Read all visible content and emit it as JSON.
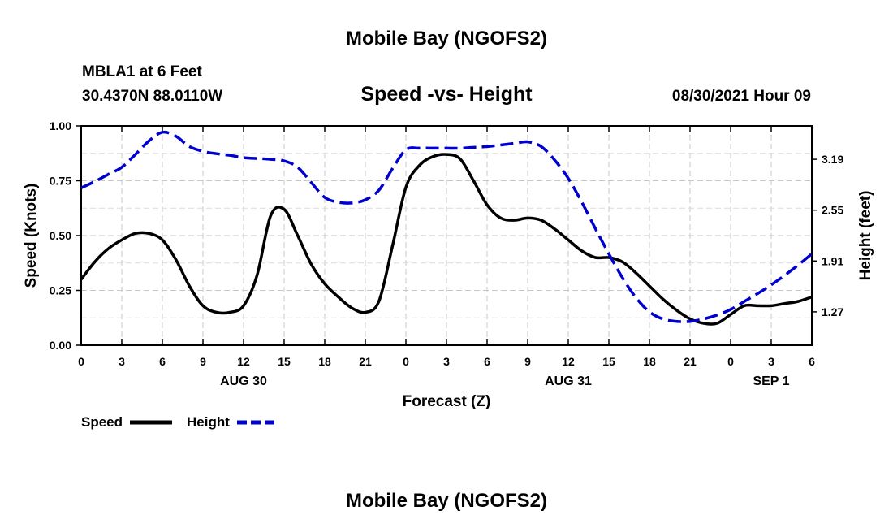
{
  "page": {
    "top_title": "Mobile Bay (NGOFS2)",
    "bottom_title": "Mobile Bay (NGOFS2)"
  },
  "header": {
    "station_line": "MBLA1 at 6 Feet",
    "coords_line": "30.4370N  88.0110W",
    "date_line": "08/30/2021 Hour 09"
  },
  "chart_data": {
    "type": "line",
    "title": "Speed -vs- Height",
    "xlabel": "Forecast (Z)",
    "ylabel": "Speed (Knots)",
    "y2label": "Height (feet)",
    "xlim": [
      0,
      54
    ],
    "ylim": [
      0,
      1.0
    ],
    "y2lim": [
      0.85,
      3.61
    ],
    "x_ticks": [
      0,
      3,
      6,
      9,
      12,
      15,
      18,
      21,
      24,
      27,
      30,
      33,
      36,
      39,
      42,
      45,
      48,
      51,
      54
    ],
    "x_tick_labels": [
      "0",
      "3",
      "6",
      "9",
      "12",
      "15",
      "18",
      "21",
      "0",
      "3",
      "6",
      "9",
      "12",
      "15",
      "18",
      "21",
      "0",
      "3",
      "6"
    ],
    "date_labels": [
      {
        "x": 12,
        "label": "AUG 30"
      },
      {
        "x": 36,
        "label": "AUG 31"
      },
      {
        "x": 51,
        "label": "SEP 1"
      }
    ],
    "y_ticks": [
      0.0,
      0.25,
      0.5,
      0.75,
      1.0
    ],
    "y_tick_labels": [
      "0.00",
      "0.25",
      "0.50",
      "0.75",
      "1.00"
    ],
    "y2_ticks": [
      1.27,
      1.91,
      2.55,
      3.19
    ],
    "y2_tick_labels": [
      "1.27",
      "1.91",
      "2.55",
      "3.19"
    ],
    "grid": true,
    "legend": "bottom-left",
    "series": [
      {
        "name": "Speed",
        "axis": "left",
        "color": "#000000",
        "style": "solid",
        "x": [
          0,
          1,
          2,
          3,
          4,
          5,
          6,
          7,
          8,
          9,
          10,
          11,
          12,
          13,
          14,
          15,
          16,
          17,
          18,
          19,
          20,
          21,
          22,
          23,
          24,
          25,
          26,
          27,
          28,
          29,
          30,
          31,
          32,
          33,
          34,
          35,
          36,
          37,
          38,
          39,
          40,
          41,
          42,
          43,
          44,
          45,
          46,
          47,
          48,
          49,
          50,
          51,
          52,
          53,
          54
        ],
        "values": [
          0.3,
          0.38,
          0.44,
          0.48,
          0.51,
          0.51,
          0.48,
          0.39,
          0.27,
          0.18,
          0.15,
          0.15,
          0.18,
          0.32,
          0.59,
          0.62,
          0.5,
          0.37,
          0.28,
          0.22,
          0.17,
          0.15,
          0.2,
          0.45,
          0.72,
          0.82,
          0.86,
          0.87,
          0.85,
          0.75,
          0.64,
          0.58,
          0.57,
          0.58,
          0.57,
          0.53,
          0.48,
          0.43,
          0.4,
          0.4,
          0.38,
          0.33,
          0.27,
          0.21,
          0.16,
          0.12,
          0.1,
          0.1,
          0.14,
          0.18,
          0.18,
          0.18,
          0.19,
          0.2,
          0.22
        ]
      },
      {
        "name": "Height",
        "axis": "right",
        "color": "#0000cc",
        "style": "dashed",
        "x": [
          0,
          1,
          2,
          3,
          4,
          5,
          6,
          7,
          8,
          9,
          10,
          11,
          12,
          13,
          14,
          15,
          16,
          17,
          18,
          19,
          20,
          21,
          22,
          23,
          24,
          25,
          26,
          27,
          28,
          29,
          30,
          31,
          32,
          33,
          34,
          35,
          36,
          37,
          38,
          39,
          40,
          41,
          42,
          43,
          44,
          45,
          46,
          47,
          48,
          49,
          50,
          51,
          52,
          53,
          54
        ],
        "values": [
          2.83,
          2.91,
          3.0,
          3.09,
          3.25,
          3.42,
          3.53,
          3.48,
          3.35,
          3.29,
          3.26,
          3.24,
          3.21,
          3.2,
          3.19,
          3.17,
          3.09,
          2.9,
          2.71,
          2.65,
          2.64,
          2.68,
          2.8,
          3.07,
          3.31,
          3.33,
          3.33,
          3.33,
          3.33,
          3.34,
          3.35,
          3.37,
          3.39,
          3.41,
          3.35,
          3.18,
          2.95,
          2.65,
          2.32,
          2.0,
          1.7,
          1.45,
          1.27,
          1.18,
          1.15,
          1.15,
          1.18,
          1.23,
          1.3,
          1.4,
          1.5,
          1.61,
          1.73,
          1.86,
          2.0
        ]
      }
    ]
  }
}
